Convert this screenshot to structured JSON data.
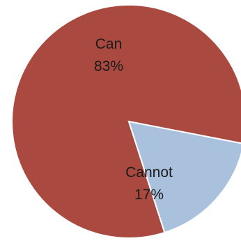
{
  "chart_data": {
    "type": "pie",
    "title": "",
    "slices": [
      {
        "label": "Can",
        "value": 83,
        "percent_label": "83%",
        "color": "#a9493f"
      },
      {
        "label": "Cannot",
        "value": 17,
        "percent_label": "17%",
        "color": "#a9c1dc"
      }
    ],
    "start_angle_deg": 0,
    "direction": "clockwise",
    "edge_color": "#ffffff"
  }
}
